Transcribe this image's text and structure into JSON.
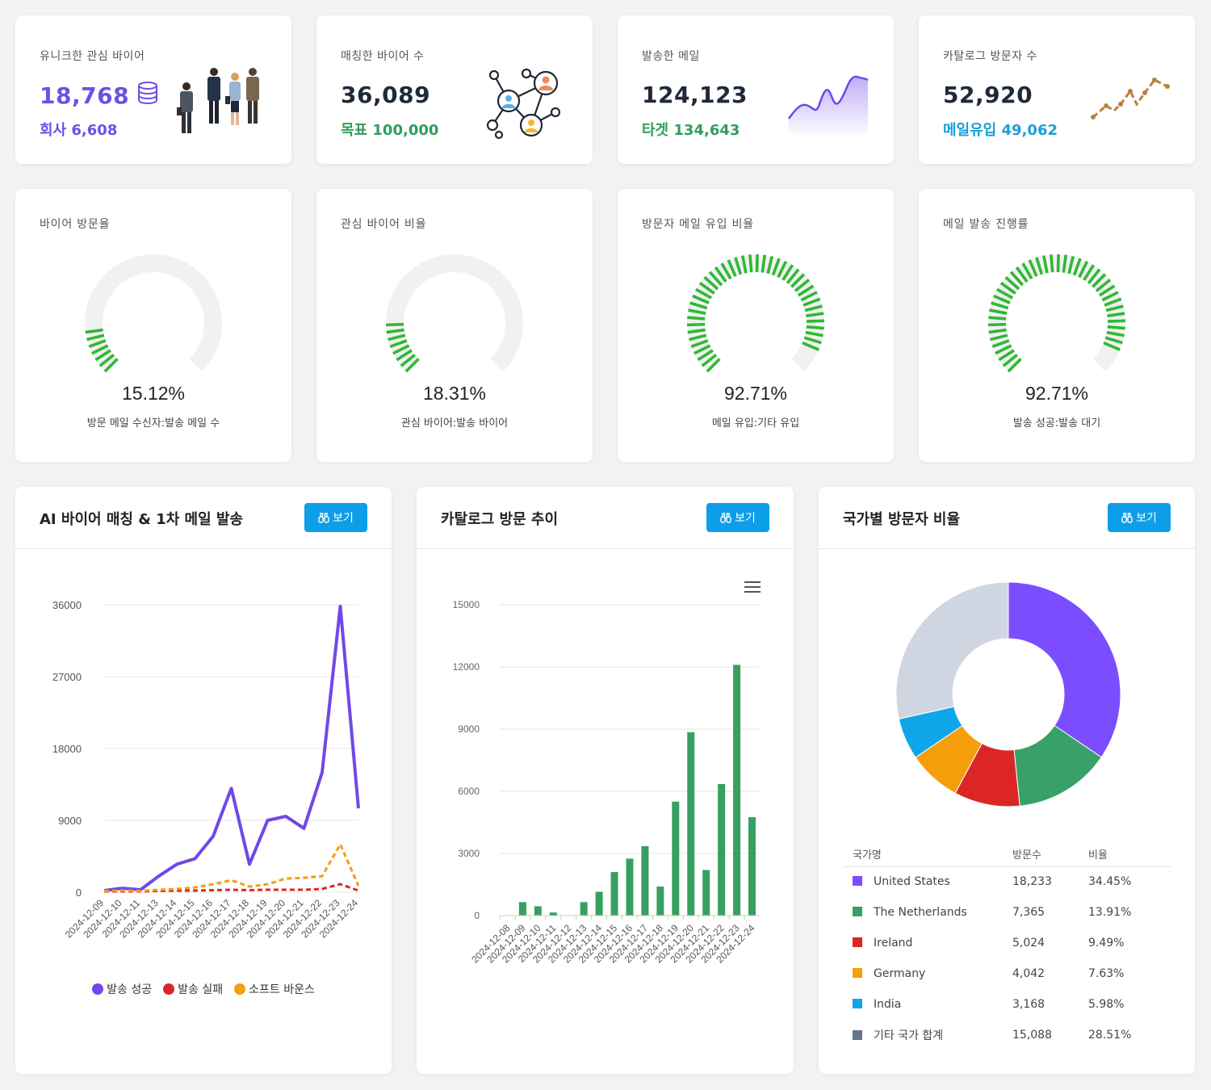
{
  "stats": [
    {
      "label": "유니크한 관심 바이어",
      "value": "18,768",
      "value_color": "#6f4ee6",
      "sub_label": "회사",
      "sub_value": "6,608",
      "sub_color": "#6f4ee6",
      "icon": "business-people-icon"
    },
    {
      "label": "매칭한 바이어 수",
      "value": "36,089",
      "value_color": "#1f2937",
      "sub_label": "목표",
      "sub_value": "100,000",
      "sub_color": "#2e9e5b",
      "icon": "network-people-icon"
    },
    {
      "label": "발송한 메일",
      "value": "124,123",
      "value_color": "#1f2937",
      "sub_label": "타겟",
      "sub_value": "134,643",
      "sub_color": "#2e9e5b",
      "icon": "area-sparkline-icon"
    },
    {
      "label": "카탈로그 방문자 수",
      "value": "52,920",
      "value_color": "#1f2937",
      "sub_label": "메일유입",
      "sub_value": "49,062",
      "sub_color": "#1a9fd8",
      "icon": "line-sparkline-icon"
    }
  ],
  "gauges": [
    {
      "title": "바이어 방문율",
      "value": 15.12,
      "value_text": "15.12%",
      "caption": "방문 메일 수신자:발송 메일 수"
    },
    {
      "title": "관심 바이어 비율",
      "value": 18.31,
      "value_text": "18.31%",
      "caption": "관심 바이어:발송 바이어"
    },
    {
      "title": "방문자 메일 유입 비율",
      "value": 92.71,
      "value_text": "92.71%",
      "caption": "메일 유입:기타 유입"
    },
    {
      "title": "메일 발송 진행률",
      "value": 92.71,
      "value_text": "92.71%",
      "caption": "발송 성공:발송 대기"
    }
  ],
  "panels": {
    "mail": {
      "title": "AI 바이어 매칭 & 1차 메일 발송",
      "button": "보기"
    },
    "visits": {
      "title": "카탈로그 방문 추이",
      "button": "보기"
    },
    "countries": {
      "title": "국가별 방문자 비율",
      "button": "보기"
    }
  },
  "chart_data": [
    {
      "type": "line",
      "x": [
        "2024-12-09",
        "2024-12-10",
        "2024-12-11",
        "2024-12-13",
        "2024-12-14",
        "2024-12-15",
        "2024-12-16",
        "2024-12-17",
        "2024-12-18",
        "2024-12-19",
        "2024-12-20",
        "2024-12-21",
        "2024-12-22",
        "2024-12-23",
        "2024-12-24"
      ],
      "ylim": [
        0,
        36000
      ],
      "yticks": [
        "36000",
        "27000",
        "18000",
        "9000",
        "0"
      ],
      "series": [
        {
          "name": "발송 성공",
          "color": "#7048e8",
          "style": "solid",
          "values": [
            200,
            500,
            300,
            2000,
            3500,
            4200,
            7000,
            13000,
            3500,
            9000,
            9500,
            8000,
            15000,
            35800,
            10500
          ]
        },
        {
          "name": "발송 실패",
          "color": "#dc2626",
          "style": "dashed",
          "values": [
            100,
            100,
            100,
            150,
            200,
            200,
            250,
            300,
            250,
            300,
            300,
            300,
            400,
            1000,
            200
          ]
        },
        {
          "name": "소프트 바운스",
          "color": "#f59e0b",
          "style": "dashed",
          "values": [
            150,
            200,
            150,
            300,
            400,
            600,
            1000,
            1500,
            700,
            1000,
            1700,
            1800,
            2000,
            6000,
            800
          ]
        }
      ]
    },
    {
      "type": "bar",
      "categories": [
        "2024-12-08",
        "2024-12-09",
        "2024-12-10",
        "2024-12-11",
        "2024-12-12",
        "2024-12-13",
        "2024-12-14",
        "2024-12-15",
        "2024-12-16",
        "2024-12-17",
        "2024-12-18",
        "2024-12-19",
        "2024-12-20",
        "2024-12-21",
        "2024-12-22",
        "2024-12-23",
        "2024-12-24"
      ],
      "values": [
        0,
        650,
        450,
        150,
        0,
        650,
        1150,
        2100,
        2750,
        3350,
        1400,
        5500,
        8850,
        2200,
        6350,
        12100,
        4750
      ],
      "ylim": [
        0,
        15000
      ],
      "yticks": [
        "15000",
        "12000",
        "9000",
        "6000",
        "3000",
        "0"
      ],
      "color": "#36a060"
    },
    {
      "type": "pie",
      "headers": [
        "국가명",
        "방문수",
        "비율"
      ],
      "slices": [
        {
          "name": "United States",
          "visits": "18,233",
          "percent": "34.45%",
          "value": 34.45,
          "color": "#7c4dff"
        },
        {
          "name": "The Netherlands",
          "visits": "7,365",
          "percent": "13.91%",
          "value": 13.91,
          "color": "#38a169"
        },
        {
          "name": "Ireland",
          "visits": "5,024",
          "percent": "9.49%",
          "value": 9.49,
          "color": "#dc2626"
        },
        {
          "name": "Germany",
          "visits": "4,042",
          "percent": "7.63%",
          "value": 7.63,
          "color": "#f59e0b"
        },
        {
          "name": "India",
          "visits": "3,168",
          "percent": "5.98%",
          "value": 5.98,
          "color": "#0ea5e9"
        },
        {
          "name": "기타 국가 합계",
          "visits": "15,088",
          "percent": "28.51%",
          "value": 28.51,
          "color": "#cfd6e2",
          "swatch": "#64748b"
        }
      ]
    }
  ]
}
